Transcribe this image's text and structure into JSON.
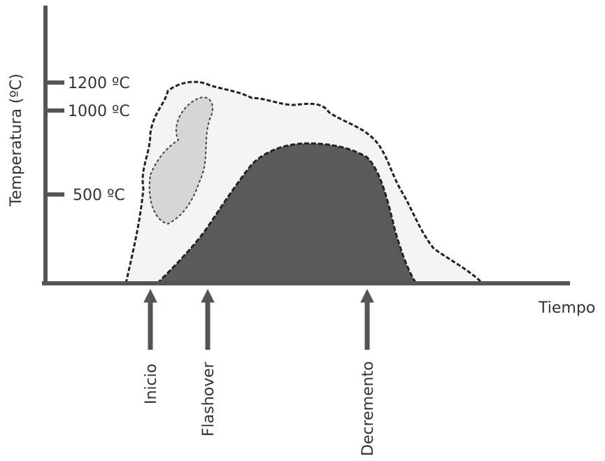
{
  "axes": {
    "y_label": "Temperatura (ºC)",
    "x_label": "Tiempo",
    "y_ticks": [
      "1200 ºC",
      "1000 ºC",
      "500 ºC"
    ]
  },
  "phases": [
    "Inicio",
    "Flashover",
    "Decremento"
  ]
}
